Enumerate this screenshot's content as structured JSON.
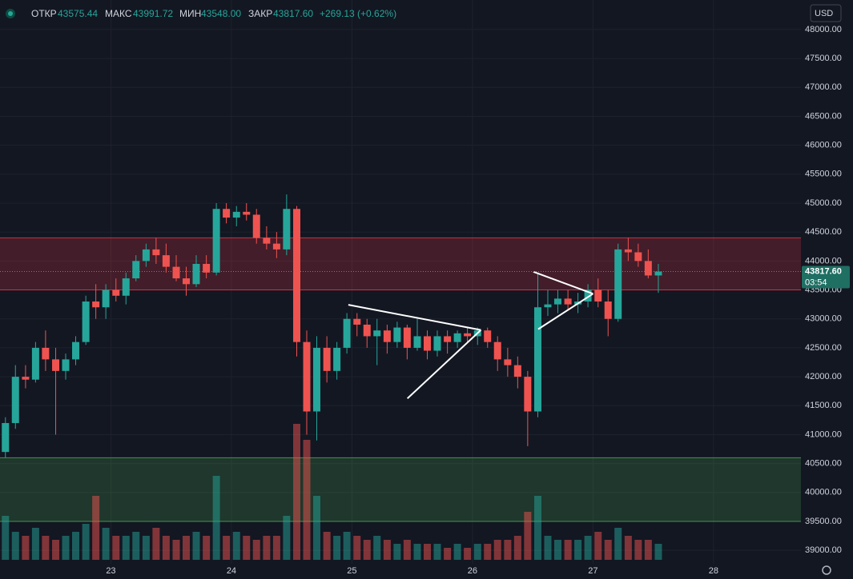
{
  "header": {
    "open_label": "ОТКР",
    "open": "43575.44",
    "high_label": "МАКС",
    "high": "43991.72",
    "low_label": "МИН",
    "low": "43548.00",
    "close_label": "ЗАКР",
    "close": "43817.60",
    "change": "+269.13 (+0.62%)",
    "currency": "USD"
  },
  "chart_data": {
    "type": "candlestick",
    "up_color": "#26a69a",
    "down_color": "#ef5350",
    "grid": true,
    "xlim": [
      22.08,
      28.725
    ],
    "ylim": [
      38505,
      48510
    ],
    "xticks": [
      {
        "value": 23,
        "label": "23"
      },
      {
        "value": 24,
        "label": "24"
      },
      {
        "value": 25,
        "label": "25"
      },
      {
        "value": 26,
        "label": "26"
      },
      {
        "value": 27,
        "label": "27"
      },
      {
        "value": 28,
        "label": "28"
      }
    ],
    "yticks": [
      {
        "value": 39000,
        "label": "39000.00"
      },
      {
        "value": 39500,
        "label": "39500.00"
      },
      {
        "value": 40000,
        "label": "40000.00"
      },
      {
        "value": 40500,
        "label": "40500.00"
      },
      {
        "value": 41000,
        "label": "41000.00"
      },
      {
        "value": 41500,
        "label": "41500.00"
      },
      {
        "value": 42000,
        "label": "42000.00"
      },
      {
        "value": 42500,
        "label": "42500.00"
      },
      {
        "value": 43000,
        "label": "43000.00"
      },
      {
        "value": 43500,
        "label": "43500.00"
      },
      {
        "value": 44000,
        "label": "44000.00"
      },
      {
        "value": 44500,
        "label": "44500.00"
      },
      {
        "value": 45000,
        "label": "45000.00"
      },
      {
        "value": 45500,
        "label": "45500.00"
      },
      {
        "value": 46000,
        "label": "46000.00"
      },
      {
        "value": 46500,
        "label": "46500.00"
      },
      {
        "value": 47000,
        "label": "47000.00"
      },
      {
        "value": 47500,
        "label": "47500.00"
      },
      {
        "value": 48000,
        "label": "48000.00"
      }
    ],
    "x": [
      22.125,
      22.208,
      22.292,
      22.375,
      22.458,
      22.542,
      22.625,
      22.708,
      22.792,
      22.875,
      22.958,
      23.042,
      23.125,
      23.208,
      23.292,
      23.375,
      23.458,
      23.542,
      23.625,
      23.708,
      23.792,
      23.875,
      23.958,
      24.042,
      24.125,
      24.208,
      24.292,
      24.375,
      24.458,
      24.542,
      24.625,
      24.708,
      24.792,
      24.875,
      24.958,
      25.042,
      25.125,
      25.208,
      25.292,
      25.375,
      25.458,
      25.542,
      25.625,
      25.708,
      25.792,
      25.875,
      25.958,
      26.042,
      26.125,
      26.208,
      26.292,
      26.375,
      26.458,
      26.542,
      26.625,
      26.708,
      26.792,
      26.875,
      26.958,
      27.042,
      27.125,
      27.208,
      27.292,
      27.375,
      27.458,
      27.542
    ],
    "ohlc": [
      [
        40700,
        41300,
        40600,
        41200
      ],
      [
        41200,
        42200,
        41100,
        42000
      ],
      [
        42000,
        42200,
        41800,
        41950
      ],
      [
        41950,
        42600,
        41900,
        42500
      ],
      [
        42500,
        42800,
        42100,
        42300
      ],
      [
        42300,
        42500,
        41000,
        42100
      ],
      [
        42100,
        42400,
        41950,
        42300
      ],
      [
        42300,
        42700,
        42200,
        42600
      ],
      [
        42600,
        43400,
        42550,
        43300
      ],
      [
        43300,
        43600,
        43000,
        43200
      ],
      [
        43200,
        43600,
        43000,
        43500
      ],
      [
        43500,
        43700,
        43300,
        43400
      ],
      [
        43400,
        43800,
        43250,
        43700
      ],
      [
        43700,
        44100,
        43650,
        44000
      ],
      [
        44000,
        44300,
        43900,
        44200
      ],
      [
        44200,
        44400,
        43950,
        44100
      ],
      [
        44100,
        44300,
        43800,
        43900
      ],
      [
        43900,
        44100,
        43650,
        43700
      ],
      [
        43700,
        43900,
        43400,
        43600
      ],
      [
        43600,
        44100,
        43550,
        43950
      ],
      [
        43950,
        44100,
        43700,
        43800
      ],
      [
        43800,
        45000,
        43750,
        44900
      ],
      [
        44900,
        45000,
        44650,
        44750
      ],
      [
        44750,
        44950,
        44600,
        44850
      ],
      [
        44850,
        45000,
        44700,
        44800
      ],
      [
        44800,
        44900,
        44300,
        44400
      ],
      [
        44400,
        44600,
        44200,
        44300
      ],
      [
        44300,
        44500,
        44050,
        44200
      ],
      [
        44200,
        45150,
        44100,
        44900
      ],
      [
        44900,
        44950,
        42350,
        42600
      ],
      [
        42600,
        42800,
        41000,
        41400
      ],
      [
        41400,
        42700,
        40900,
        42500
      ],
      [
        42500,
        42700,
        41900,
        42100
      ],
      [
        42100,
        42600,
        41950,
        42500
      ],
      [
        42500,
        43100,
        42400,
        43000
      ],
      [
        43000,
        43100,
        42700,
        42900
      ],
      [
        42900,
        43000,
        42500,
        42700
      ],
      [
        42700,
        43000,
        42200,
        42800
      ],
      [
        42800,
        42900,
        42400,
        42600
      ],
      [
        42600,
        42950,
        42500,
        42850
      ],
      [
        42850,
        42900,
        42300,
        42500
      ],
      [
        42500,
        43000,
        42450,
        42700
      ],
      [
        42700,
        42800,
        42300,
        42450
      ],
      [
        42450,
        42800,
        42350,
        42700
      ],
      [
        42700,
        42800,
        42400,
        42600
      ],
      [
        42600,
        42800,
        42500,
        42750
      ],
      [
        42750,
        42850,
        42600,
        42700
      ],
      [
        42700,
        42850,
        42550,
        42800
      ],
      [
        42800,
        42850,
        42500,
        42600
      ],
      [
        42600,
        42700,
        42100,
        42300
      ],
      [
        42300,
        42500,
        42000,
        42200
      ],
      [
        42200,
        42350,
        41800,
        42000
      ],
      [
        42000,
        42100,
        40800,
        41400
      ],
      [
        41400,
        43800,
        41300,
        43200
      ],
      [
        43200,
        43500,
        43050,
        43250
      ],
      [
        43250,
        43500,
        43100,
        43350
      ],
      [
        43350,
        43500,
        43150,
        43250
      ],
      [
        43250,
        43450,
        43100,
        43300
      ],
      [
        43300,
        43600,
        43200,
        43500
      ],
      [
        43500,
        43700,
        43200,
        43300
      ],
      [
        43300,
        43500,
        42700,
        43000
      ],
      [
        43000,
        44300,
        42950,
        44200
      ],
      [
        44200,
        44400,
        44000,
        44150
      ],
      [
        44150,
        44300,
        43900,
        44000
      ],
      [
        44000,
        44200,
        43700,
        43750
      ],
      [
        43750,
        43950,
        43450,
        43817.6
      ]
    ],
    "volume": [
      55,
      35,
      30,
      40,
      30,
      25,
      30,
      35,
      45,
      80,
      40,
      30,
      30,
      35,
      30,
      40,
      30,
      25,
      30,
      35,
      30,
      105,
      30,
      35,
      30,
      25,
      30,
      30,
      55,
      170,
      150,
      80,
      35,
      30,
      35,
      30,
      25,
      30,
      25,
      20,
      25,
      20,
      20,
      20,
      15,
      20,
      15,
      20,
      20,
      25,
      25,
      30,
      60,
      80,
      30,
      25,
      25,
      25,
      30,
      35,
      25,
      40,
      30,
      25,
      25,
      20
    ],
    "vlim": [
      0,
      180
    ],
    "zones": [
      {
        "from": 43500,
        "to": 44400,
        "color": "#f23645"
      },
      {
        "from": 39500,
        "to": 40600,
        "color": "#4caf50"
      }
    ],
    "drawings": [
      {
        "points": [
          [
            24.97,
            43243
          ],
          [
            26.07,
            42808
          ]
        ]
      },
      {
        "points": [
          [
            25.46,
            41625
          ],
          [
            26.07,
            42808
          ]
        ]
      },
      {
        "points": [
          [
            26.505,
            43814
          ],
          [
            27.0,
            43434
          ]
        ]
      },
      {
        "points": [
          [
            26.545,
            42822
          ],
          [
            27.0,
            43434
          ]
        ]
      }
    ],
    "last": {
      "value": 43817.6,
      "label": "43817.60",
      "countdown": "03:54"
    }
  }
}
